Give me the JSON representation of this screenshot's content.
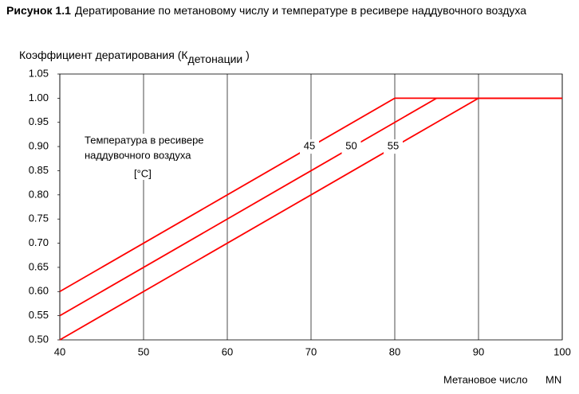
{
  "chart_data": {
    "type": "line",
    "title_label": "Рисунок 1.1",
    "title": "Дератирование по метановому числу и температуре в ресивере наддувочного воздуха",
    "y_label": {
      "main": "Коэффициент дератирования (К",
      "sub": "детонации",
      "close": " )"
    },
    "x_label": {
      "main": "Метановое число",
      "unit": "MN"
    },
    "annotation": {
      "line1": "Температура в ресивере",
      "line2": "наддувочного воздуха",
      "unit": "[°C]"
    },
    "x": [
      40,
      80,
      85,
      90,
      100
    ],
    "series": [
      {
        "name": "45",
        "color": "#ff0000",
        "values": [
          0.6,
          1.0,
          1.0,
          1.0,
          1.0
        ]
      },
      {
        "name": "50",
        "color": "#ff0000",
        "values": [
          0.55,
          0.95,
          1.0,
          1.0,
          1.0
        ]
      },
      {
        "name": "55",
        "color": "#ff0000",
        "values": [
          0.5,
          0.9,
          0.95,
          1.0,
          1.0
        ]
      }
    ],
    "xlim": [
      40,
      100
    ],
    "ylim": [
      0.5,
      1.05
    ],
    "xticks": [
      40,
      50,
      60,
      70,
      80,
      90,
      100
    ],
    "yticks": [
      {
        "value": 0.5,
        "label": "0.50"
      },
      0.55,
      {
        "value": 0.6,
        "label": "0.60"
      },
      0.65,
      {
        "value": 0.7,
        "label": "0.70"
      },
      0.75,
      {
        "value": 0.8,
        "label": "0.80"
      },
      0.85,
      {
        "value": 0.9,
        "label": "0.90"
      },
      0.95,
      {
        "value": 1.0,
        "label": "1.00"
      },
      1.05
    ],
    "grid": "x"
  }
}
